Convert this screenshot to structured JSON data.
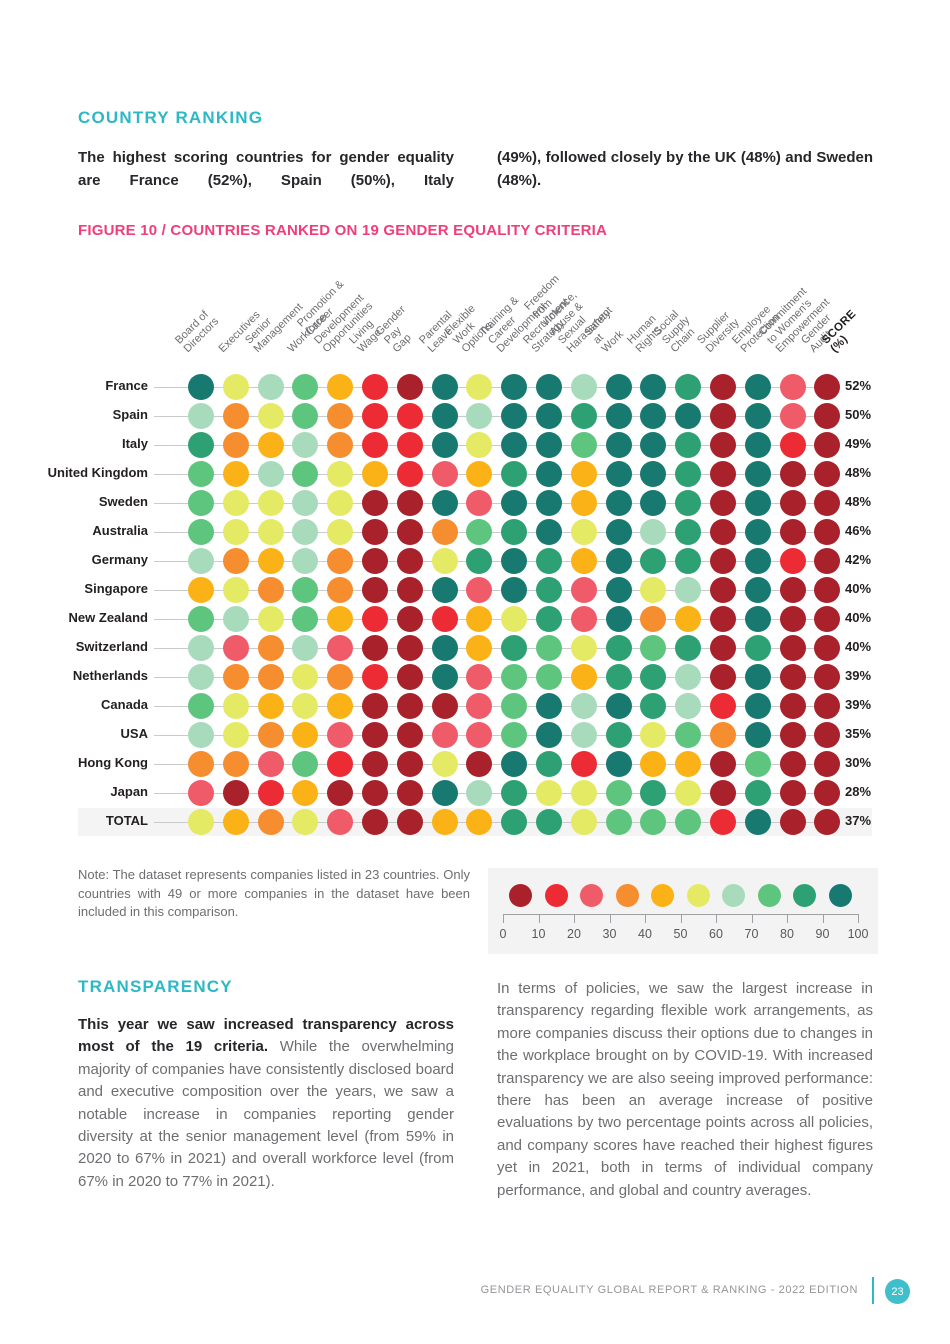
{
  "page": {
    "section1_title": "COUNTRY RANKING",
    "intro_left": "The highest scoring countries for gender equality are France (52%), Spain (50%), Italy",
    "intro_right": "(49%), followed closely by the UK (48%) and Sweden (48%).",
    "figure_title": "FIGURE 10 / COUNTRIES RANKED ON 19 GENDER EQUALITY CRITERIA",
    "note": "Note: The dataset represents companies listed in 23 countries. Only countries with 49 or more companies in the dataset have been included in this comparison.",
    "section2_title": "TRANSPARENCY",
    "trans_left_bold": "This year we saw increased transparency across most of the 19 criteria.",
    "trans_left_rest": " While the overwhelming majority of companies have consistently disclosed board and executive composition over the years, we saw a notable increase in companies reporting gender diversity at the senior management level (from 59% in 2020 to 67% in 2021) and overall workforce level (from 67% in 2020 to 77% in 2021).",
    "trans_right": "In terms of policies, we saw the largest increase in transparency regarding flexible work arrangements, as more companies discuss their options due to changes in the workplace brought on by COVID-19. With increased transparency we are also seeing improved performance: there has been an average increase of positive evaluations by two percentage points across all policies, and company scores have reached their highest figures yet in 2021, both in terms of individual company performance, and global and country averages.",
    "footer_text": "GENDER EQUALITY GLOBAL REPORT & RANKING - 2022 EDITION",
    "page_number": "23"
  },
  "colors": {
    "heading_cyan": "#2CB8C5",
    "figure_pink": "#EF3E78",
    "body_gray": "#6D6E71",
    "dark_text": "#27272B",
    "footer_teal": "#3FBFCB",
    "total_row_bg": "#F4F4F4",
    "legend_bg": "#F3F3F3"
  },
  "chart_data": {
    "type": "heatmap",
    "title": "FIGURE 10 / COUNTRIES RANKED ON 19 GENDER EQUALITY CRITERIA",
    "score_header": "SCORE (%)",
    "criteria": [
      "Board of Directors",
      "Executives",
      "Senior Management",
      "Workforce",
      "Promotion & Career\nDevelopment Opportunities",
      "Living Wage",
      "Gender Pay Gap",
      "Parental Leave",
      "Flexible Work Options",
      "Training & Career\nDevelopment",
      "Recruitment Strategy",
      "Freedom from Violence,\nAbuse & Sexual Harassment",
      "Safety at Work",
      "Human Rights",
      "Social Supply Chain",
      "Supplier Diversity",
      "Employee Protection",
      "Commitment to Women's\nEmpowerment",
      "Gender Audit"
    ],
    "color_scale": {
      "description": "cell values are decade bins: 0 = 0-10% ... 9 = 90-100%",
      "bins": [
        "#A8212B",
        "#ED2B35",
        "#F05B69",
        "#F68D2E",
        "#FBB216",
        "#E5EA64",
        "#A7DBBB",
        "#5EC57F",
        "#2DA173",
        "#177970"
      ],
      "axis_ticks": [
        0,
        10,
        20,
        30,
        40,
        50,
        60,
        70,
        80,
        90,
        100
      ]
    },
    "rows": [
      {
        "country": "France",
        "score": "52%",
        "cells": [
          9,
          5,
          6,
          7,
          4,
          1,
          0,
          9,
          5,
          9,
          9,
          6,
          9,
          9,
          8,
          0,
          9,
          2,
          0
        ]
      },
      {
        "country": "Spain",
        "score": "50%",
        "cells": [
          6,
          3,
          5,
          7,
          3,
          1,
          1,
          9,
          6,
          9,
          9,
          8,
          9,
          9,
          9,
          0,
          9,
          2,
          0
        ]
      },
      {
        "country": "Italy",
        "score": "49%",
        "cells": [
          8,
          3,
          4,
          6,
          3,
          1,
          1,
          9,
          5,
          9,
          9,
          7,
          9,
          9,
          8,
          0,
          9,
          1,
          0
        ]
      },
      {
        "country": "United Kingdom",
        "score": "48%",
        "cells": [
          7,
          4,
          6,
          7,
          5,
          4,
          1,
          2,
          4,
          8,
          9,
          4,
          9,
          9,
          8,
          0,
          9,
          0,
          0
        ]
      },
      {
        "country": "Sweden",
        "score": "48%",
        "cells": [
          7,
          5,
          5,
          6,
          5,
          0,
          0,
          9,
          2,
          9,
          9,
          4,
          9,
          9,
          8,
          0,
          9,
          0,
          0
        ]
      },
      {
        "country": "Australia",
        "score": "46%",
        "cells": [
          7,
          5,
          5,
          6,
          5,
          0,
          0,
          3,
          7,
          8,
          9,
          5,
          9,
          6,
          8,
          0,
          9,
          0,
          0
        ]
      },
      {
        "country": "Germany",
        "score": "42%",
        "cells": [
          6,
          3,
          4,
          6,
          3,
          0,
          0,
          5,
          8,
          9,
          8,
          4,
          9,
          8,
          8,
          0,
          9,
          1,
          0
        ]
      },
      {
        "country": "Singapore",
        "score": "40%",
        "cells": [
          4,
          5,
          3,
          7,
          3,
          0,
          0,
          9,
          2,
          9,
          8,
          2,
          9,
          5,
          6,
          0,
          9,
          0,
          0
        ]
      },
      {
        "country": "New Zealand",
        "score": "40%",
        "cells": [
          7,
          6,
          5,
          7,
          4,
          1,
          0,
          1,
          4,
          5,
          8,
          2,
          9,
          3,
          4,
          0,
          9,
          0,
          0
        ]
      },
      {
        "country": "Switzerland",
        "score": "40%",
        "cells": [
          6,
          2,
          3,
          6,
          2,
          0,
          0,
          9,
          4,
          8,
          7,
          5,
          8,
          7,
          8,
          0,
          8,
          0,
          0
        ]
      },
      {
        "country": "Netherlands",
        "score": "39%",
        "cells": [
          6,
          3,
          3,
          5,
          3,
          1,
          0,
          9,
          2,
          7,
          7,
          4,
          8,
          8,
          6,
          0,
          9,
          0,
          0
        ]
      },
      {
        "country": "Canada",
        "score": "39%",
        "cells": [
          7,
          5,
          4,
          5,
          4,
          0,
          0,
          0,
          2,
          7,
          9,
          6,
          9,
          8,
          6,
          1,
          9,
          0,
          0
        ]
      },
      {
        "country": "USA",
        "score": "35%",
        "cells": [
          6,
          5,
          3,
          4,
          2,
          0,
          0,
          2,
          2,
          7,
          9,
          6,
          8,
          5,
          7,
          3,
          9,
          0,
          0
        ]
      },
      {
        "country": "Hong Kong",
        "score": "30%",
        "cells": [
          3,
          3,
          2,
          7,
          1,
          0,
          0,
          5,
          0,
          9,
          8,
          1,
          9,
          4,
          4,
          0,
          7,
          0,
          0
        ]
      },
      {
        "country": "Japan",
        "score": "28%",
        "cells": [
          2,
          0,
          1,
          4,
          0,
          0,
          0,
          9,
          6,
          8,
          5,
          5,
          7,
          8,
          5,
          0,
          8,
          0,
          0
        ]
      },
      {
        "country": "TOTAL",
        "score": "37%",
        "cells": [
          5,
          4,
          3,
          5,
          2,
          0,
          0,
          4,
          4,
          8,
          8,
          5,
          7,
          7,
          7,
          1,
          9,
          0,
          0
        ]
      }
    ]
  }
}
